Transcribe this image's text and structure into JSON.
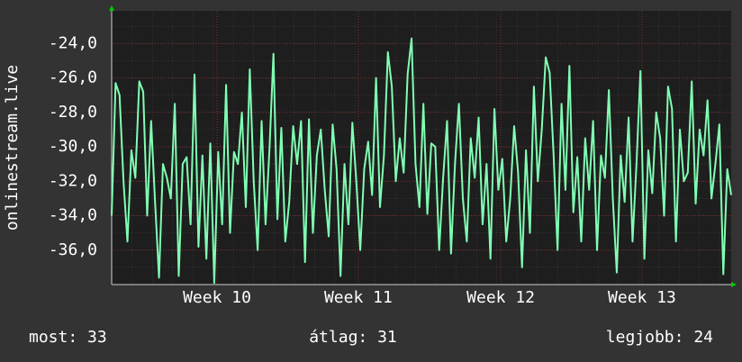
{
  "chart_data": {
    "type": "line",
    "y_label": "onlinestream.live",
    "series": [
      {
        "color": "#80ffb4",
        "values": [
          -34,
          -26.3,
          -27,
          -32,
          -35.5,
          -30.2,
          -31.8,
          -26.2,
          -26.8,
          -34,
          -28.5,
          -33.2,
          -37.6,
          -31,
          -31.8,
          -33,
          -27.5,
          -37.5,
          -31,
          -30.6,
          -34.5,
          -25.8,
          -35.8,
          -30.5,
          -36.5,
          -29.8,
          -37.9,
          -30.3,
          -34.5,
          -26.4,
          -35,
          -30.3,
          -31,
          -28,
          -33.5,
          -25.5,
          -32,
          -36,
          -28.5,
          -34.5,
          -30.1,
          -24.6,
          -34.2,
          -28.9,
          -35.5,
          -33.2,
          -28.8,
          -31,
          -28.5,
          -36.7,
          -28.4,
          -35,
          -30.5,
          -29,
          -32.5,
          -35.2,
          -28.7,
          -31.3,
          -37.5,
          -31,
          -34.5,
          -28.6,
          -32,
          -36,
          -31.3,
          -29.7,
          -32.8,
          -26,
          -33.5,
          -30.5,
          -24.5,
          -26.5,
          -32,
          -29.5,
          -31.5,
          -25.8,
          -23.7,
          -31,
          -33.5,
          -27.5,
          -33.9,
          -29.8,
          -30,
          -36,
          -31.8,
          -28.5,
          -36.2,
          -31,
          -27.5,
          -33,
          -35.5,
          -29.5,
          -31.8,
          -28.3,
          -34.5,
          -31,
          -36.5,
          -27.8,
          -32.5,
          -30.7,
          -35.5,
          -33,
          -28.8,
          -31.5,
          -37,
          -30.2,
          -35,
          -26.5,
          -32,
          -29,
          -24.8,
          -25.7,
          -30.5,
          -36,
          -27.5,
          -32.5,
          -25.3,
          -33.8,
          -30.6,
          -35.5,
          -29.5,
          -32.5,
          -28.5,
          -36,
          -30.5,
          -31.8,
          -26.7,
          -33,
          -37.3,
          -30.5,
          -33.2,
          -28.3,
          -35.5,
          -31,
          -25.6,
          -36.5,
          -30.2,
          -32.7,
          -28,
          -29.5,
          -34,
          -26.5,
          -27.8,
          -35.5,
          -29,
          -32,
          -31.5,
          -26.2,
          -33.3,
          -29,
          -30.5,
          -27.3,
          -33,
          -31,
          -28.7,
          -37.4,
          -31.3,
          -32.8
        ]
      }
    ],
    "xlim": [
      0,
      157
    ],
    "xticks": [
      {
        "value": 26.7,
        "label": "Week 10"
      },
      {
        "value": 62.5,
        "label": "Week 11"
      },
      {
        "value": 98.6,
        "label": "Week 12"
      },
      {
        "value": 134.4,
        "label": "Week 13"
      }
    ],
    "ylim": [
      -38,
      -22.1
    ],
    "yticks": [
      {
        "value": -24,
        "label": "-24,0"
      },
      {
        "value": -26,
        "label": "-26,0"
      },
      {
        "value": -28,
        "label": "-28,0"
      },
      {
        "value": -30,
        "label": "-30,0"
      },
      {
        "value": -32,
        "label": "-32,0"
      },
      {
        "value": -34,
        "label": "-34,0"
      },
      {
        "value": -36,
        "label": "-36,0"
      }
    ],
    "grid": true,
    "footer": [
      "most: 33",
      "átlag: 31",
      "legjobb: 24"
    ]
  }
}
